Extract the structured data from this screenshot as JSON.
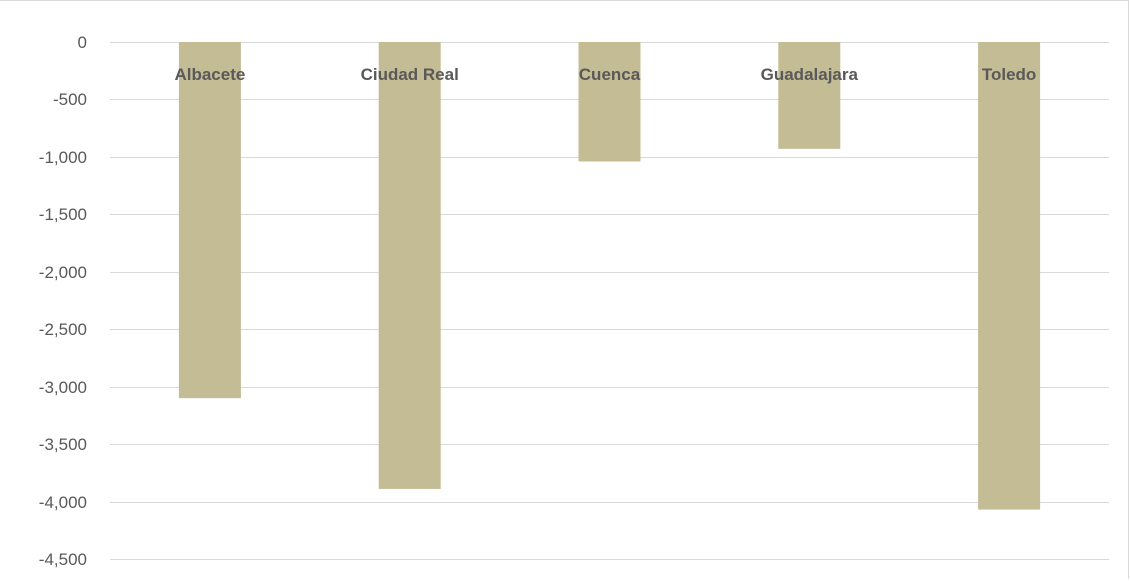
{
  "chart_data": {
    "type": "bar",
    "title": "",
    "xlabel": "",
    "ylabel": "",
    "categories": [
      "Albacete",
      "Ciudad Real",
      "Cuenca",
      "Guadalajara",
      "Toledo"
    ],
    "values": [
      -3100,
      -3890,
      -1040,
      -930,
      -4070
    ],
    "ylim": [
      -4500,
      0
    ],
    "yticks": [
      0,
      -500,
      -1000,
      -1500,
      -2000,
      -2500,
      -3000,
      -3500,
      -4000,
      -4500
    ],
    "ytick_labels": [
      "0",
      "-500",
      "-1,000",
      "-1,500",
      "-2,000",
      "-2,500",
      "-3,000",
      "-3,500",
      "-4,000",
      "-4,500"
    ],
    "grid": true,
    "legend": "none",
    "category_label_position": "top",
    "colors": {
      "bar": "#c4bc94",
      "grid": "#d9d9d9",
      "text": "#595959"
    }
  }
}
